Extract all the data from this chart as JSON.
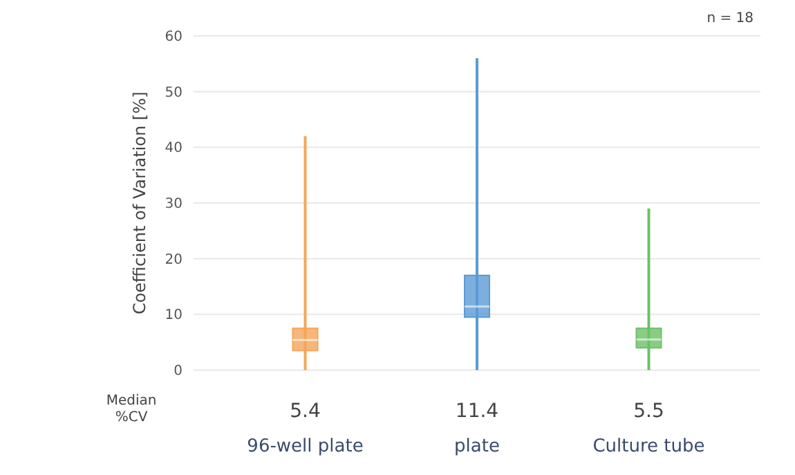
{
  "chart_data": {
    "type": "box",
    "ylabel": "Coefficient of Variation [%]",
    "categories": [
      "96-well plate",
      "plate",
      "Culture tube"
    ],
    "colors": [
      "#f5a55a",
      "#5b9bd5",
      "#6cc066"
    ],
    "boxes": [
      {
        "low": 0,
        "q1": 3.5,
        "median": 5.4,
        "q3": 7.5,
        "high": 42
      },
      {
        "low": 0,
        "q1": 9.5,
        "median": 11.4,
        "q3": 17,
        "high": 56
      },
      {
        "low": 0,
        "q1": 4,
        "median": 5.5,
        "q3": 7.5,
        "high": 29
      }
    ],
    "ylim": [
      0,
      60
    ],
    "yticks": [
      0,
      10,
      20,
      30,
      40,
      50,
      60
    ],
    "grid": "y",
    "annotations": [
      "n = 18",
      "Median %CV",
      "5.4",
      "11.4",
      "5.5"
    ]
  }
}
